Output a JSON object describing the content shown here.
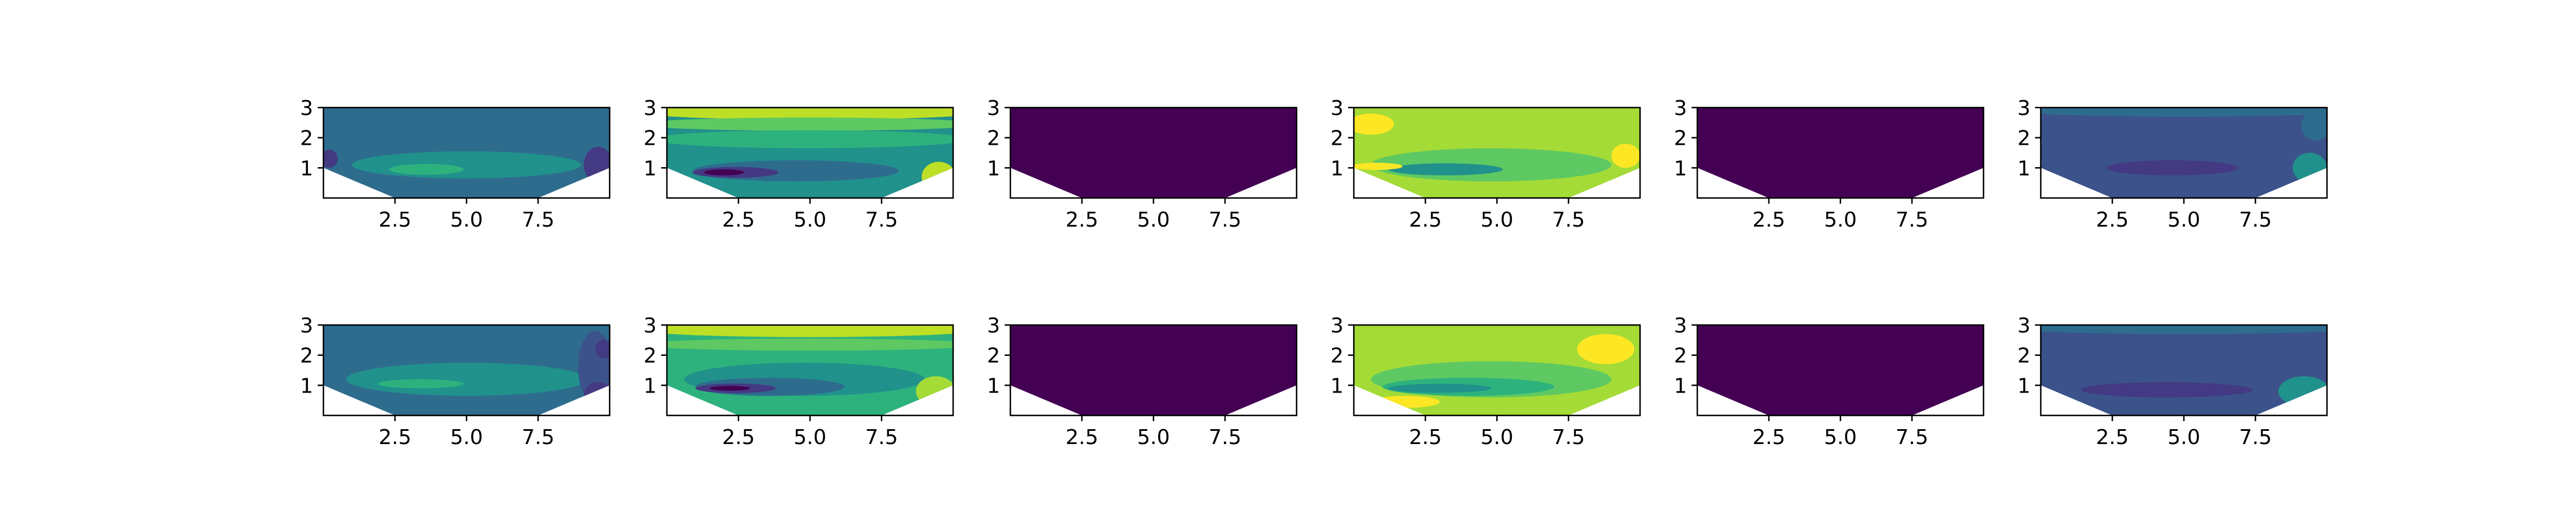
{
  "chart_data": {
    "type": "heatmap",
    "subtype": "filled-contour",
    "rows": 2,
    "cols": 6,
    "colormap": "viridis",
    "xlim": [
      0,
      10
    ],
    "ylim": [
      0,
      3
    ],
    "x_ticks": [
      "2.5",
      "5.0",
      "7.5"
    ],
    "y_ticks": [
      "1",
      "2",
      "3"
    ],
    "title": "",
    "xlabel": "",
    "ylabel": "",
    "panels": [
      {
        "row": 0,
        "col": 0,
        "base": "#2e6c8e",
        "blobs": [
          {
            "x": 5,
            "y": 1.1,
            "rx": 4.0,
            "ry": 0.45,
            "c": "#21918c"
          },
          {
            "x": 3.6,
            "y": 0.95,
            "rx": 1.3,
            "ry": 0.18,
            "c": "#2db27d"
          },
          {
            "x": 9.6,
            "y": 1.1,
            "rx": 0.5,
            "ry": 0.6,
            "c": "#443983"
          },
          {
            "x": 0.2,
            "y": 1.3,
            "rx": 0.3,
            "ry": 0.3,
            "c": "#443983"
          }
        ]
      },
      {
        "row": 0,
        "col": 1,
        "base": "#21918c",
        "blobs": [
          {
            "x": 5,
            "y": 2.85,
            "rx": 6,
            "ry": 0.25,
            "c": "#bddf26"
          },
          {
            "x": 5,
            "y": 2.45,
            "rx": 6,
            "ry": 0.22,
            "c": "#5ec962"
          },
          {
            "x": 5,
            "y": 1.95,
            "rx": 5.5,
            "ry": 0.3,
            "c": "#2db27d"
          },
          {
            "x": 4.5,
            "y": 0.9,
            "rx": 3.6,
            "ry": 0.35,
            "c": "#2e6c8e"
          },
          {
            "x": 2.4,
            "y": 0.85,
            "rx": 1.5,
            "ry": 0.18,
            "c": "#443983"
          },
          {
            "x": 2.0,
            "y": 0.85,
            "rx": 0.7,
            "ry": 0.1,
            "c": "#440154"
          },
          {
            "x": 9.5,
            "y": 0.7,
            "rx": 0.6,
            "ry": 0.5,
            "c": "#bddf26"
          }
        ]
      },
      {
        "row": 0,
        "col": 2,
        "base": "#440154",
        "blobs": []
      },
      {
        "row": 0,
        "col": 3,
        "base": "#a5db36",
        "blobs": [
          {
            "x": 4.8,
            "y": 1.1,
            "rx": 4.2,
            "ry": 0.55,
            "c": "#5ec962"
          },
          {
            "x": 3.2,
            "y": 0.95,
            "rx": 2.0,
            "ry": 0.2,
            "c": "#21918c"
          },
          {
            "x": 0.6,
            "y": 2.45,
            "rx": 0.8,
            "ry": 0.35,
            "c": "#fde725"
          },
          {
            "x": 0.8,
            "y": 1.05,
            "rx": 0.9,
            "ry": 0.12,
            "c": "#fde725"
          },
          {
            "x": 9.5,
            "y": 1.4,
            "rx": 0.5,
            "ry": 0.4,
            "c": "#fde725"
          }
        ]
      },
      {
        "row": 0,
        "col": 4,
        "base": "#440154",
        "blobs": []
      },
      {
        "row": 0,
        "col": 5,
        "base": "#3b528b",
        "blobs": [
          {
            "x": 5,
            "y": 2.9,
            "rx": 6,
            "ry": 0.2,
            "c": "#2e6c8e"
          },
          {
            "x": 9.6,
            "y": 2.4,
            "rx": 0.5,
            "ry": 0.5,
            "c": "#2e6c8e"
          },
          {
            "x": 4.6,
            "y": 1.0,
            "rx": 2.3,
            "ry": 0.25,
            "c": "#443983"
          },
          {
            "x": 9.4,
            "y": 1.0,
            "rx": 0.6,
            "ry": 0.5,
            "c": "#21918c"
          }
        ]
      },
      {
        "row": 1,
        "col": 0,
        "base": "#2e6c8e",
        "blobs": [
          {
            "x": 5,
            "y": 1.2,
            "rx": 4.2,
            "ry": 0.55,
            "c": "#21918c"
          },
          {
            "x": 3.4,
            "y": 1.05,
            "rx": 1.5,
            "ry": 0.15,
            "c": "#2db27d"
          },
          {
            "x": 9.5,
            "y": 1.6,
            "rx": 0.6,
            "ry": 1.2,
            "c": "#3b528b"
          },
          {
            "x": 9.8,
            "y": 2.2,
            "rx": 0.3,
            "ry": 0.3,
            "c": "#443983"
          },
          {
            "x": 9.6,
            "y": 0.7,
            "rx": 0.5,
            "ry": 0.4,
            "c": "#443983"
          }
        ]
      },
      {
        "row": 1,
        "col": 1,
        "base": "#2db27d",
        "blobs": [
          {
            "x": 5,
            "y": 2.85,
            "rx": 6,
            "ry": 0.25,
            "c": "#bddf26"
          },
          {
            "x": 5,
            "y": 2.35,
            "rx": 6,
            "ry": 0.2,
            "c": "#5ec962"
          },
          {
            "x": 4.8,
            "y": 1.2,
            "rx": 4.2,
            "ry": 0.55,
            "c": "#21918c"
          },
          {
            "x": 3.6,
            "y": 0.95,
            "rx": 2.6,
            "ry": 0.3,
            "c": "#2e6c8e"
          },
          {
            "x": 2.4,
            "y": 0.9,
            "rx": 1.4,
            "ry": 0.16,
            "c": "#443983"
          },
          {
            "x": 2.2,
            "y": 0.9,
            "rx": 0.7,
            "ry": 0.08,
            "c": "#440154"
          },
          {
            "x": 9.4,
            "y": 0.8,
            "rx": 0.7,
            "ry": 0.5,
            "c": "#a5db36"
          }
        ]
      },
      {
        "row": 1,
        "col": 2,
        "base": "#440154",
        "blobs": []
      },
      {
        "row": 1,
        "col": 3,
        "base": "#a5db36",
        "blobs": [
          {
            "x": 4.8,
            "y": 1.2,
            "rx": 4.2,
            "ry": 0.6,
            "c": "#5ec962"
          },
          {
            "x": 4.0,
            "y": 0.95,
            "rx": 3.0,
            "ry": 0.3,
            "c": "#2db27d"
          },
          {
            "x": 3.0,
            "y": 0.9,
            "rx": 1.8,
            "ry": 0.15,
            "c": "#21918c"
          },
          {
            "x": 8.8,
            "y": 2.2,
            "rx": 1.0,
            "ry": 0.5,
            "c": "#fde725"
          },
          {
            "x": 1.8,
            "y": 0.45,
            "rx": 1.2,
            "ry": 0.2,
            "c": "#fde725"
          }
        ]
      },
      {
        "row": 1,
        "col": 4,
        "base": "#440154",
        "blobs": []
      },
      {
        "row": 1,
        "col": 5,
        "base": "#3b528b",
        "blobs": [
          {
            "x": 5,
            "y": 2.9,
            "rx": 6,
            "ry": 0.2,
            "c": "#2e6c8e"
          },
          {
            "x": 4.4,
            "y": 0.85,
            "rx": 3.0,
            "ry": 0.25,
            "c": "#443983"
          },
          {
            "x": 9.2,
            "y": 0.8,
            "rx": 0.9,
            "ry": 0.5,
            "c": "#21918c"
          }
        ]
      }
    ]
  }
}
